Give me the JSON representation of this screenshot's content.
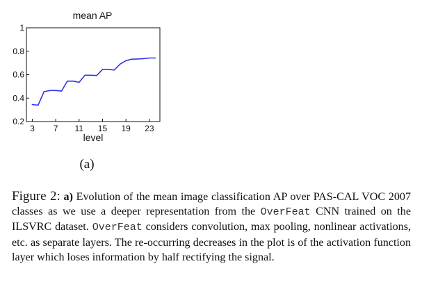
{
  "chart_data": {
    "type": "line",
    "title": "mean AP",
    "xlabel": "level",
    "ylabel": "",
    "xlim": [
      2,
      24.8
    ],
    "ylim": [
      0.2,
      1.0
    ],
    "xticks": [
      3,
      7,
      11,
      15,
      19,
      23
    ],
    "yticks": [
      0.2,
      0.4,
      0.6,
      0.8,
      1.0
    ],
    "ytick_labels": [
      "0.2",
      "0.4",
      "0.6",
      "0.8",
      "1"
    ],
    "grid": false,
    "line_color": "#3333ee",
    "series": [
      {
        "x": [
          3,
          4,
          5,
          6,
          7,
          8,
          9,
          10,
          11,
          12,
          13,
          14,
          15,
          16,
          17,
          18,
          19,
          20,
          21,
          22,
          23,
          24
        ],
        "y": [
          0.345,
          0.34,
          0.455,
          0.465,
          0.465,
          0.46,
          0.545,
          0.545,
          0.535,
          0.595,
          0.595,
          0.593,
          0.645,
          0.645,
          0.64,
          0.69,
          0.72,
          0.732,
          0.734,
          0.737,
          0.742,
          0.742
        ]
      }
    ]
  },
  "figure": {
    "subfig_label": "(a)",
    "caption": {
      "prefix": "Figure 2:",
      "part_label": "a)",
      "text_1": "Evolution of the mean image classification AP over PAS-CAL VOC 2007 classes as we use a deeper representation from the",
      "code_1": "OverFeat",
      "text_2": "CNN trained on the ILSVRC dataset.",
      "code_2": "OverFeat",
      "text_3": "considers convolution, max pooling, nonlinear activations, etc. as separate layers. The re-occurring decreases in the plot is of the activation function layer which loses information by half rectifying the signal."
    }
  }
}
